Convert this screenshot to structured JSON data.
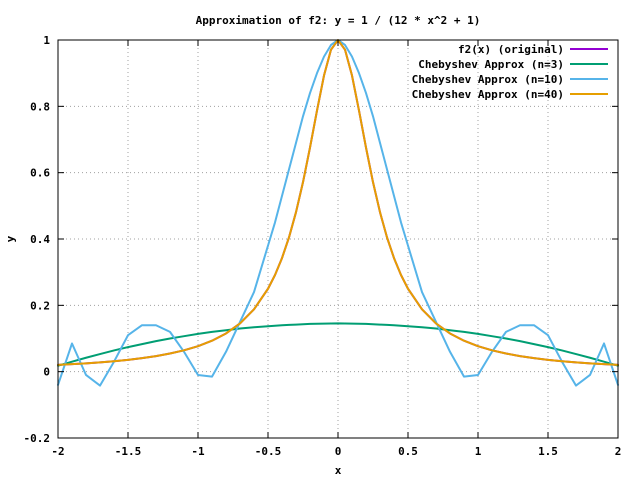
{
  "chart_data": {
    "type": "line",
    "title": "Approximation of f2: y = 1 / (12 * x^2 + 1)",
    "xlabel": "x",
    "ylabel": "y",
    "xlim": [
      -2,
      2
    ],
    "ylim": [
      -0.2,
      1
    ],
    "x_ticks": [
      -2,
      -1.5,
      -1,
      -0.5,
      0,
      0.5,
      1,
      1.5,
      2
    ],
    "x_tick_labels": [
      "-2",
      "-1.5",
      "-1",
      "-0.5",
      "0",
      "0.5",
      "1",
      "1.5",
      "2"
    ],
    "y_ticks": [
      -0.2,
      0,
      0.2,
      0.4,
      0.6,
      0.8,
      1
    ],
    "y_tick_labels": [
      "-0.2",
      "0",
      "0.2",
      "0.4",
      "0.6",
      "0.8",
      "1"
    ],
    "grid": true,
    "legend_position": "top-right",
    "x": [
      -2,
      -1.9,
      -1.8,
      -1.7,
      -1.6,
      -1.5,
      -1.4,
      -1.3,
      -1.2,
      -1.1,
      -1,
      -0.9,
      -0.8,
      -0.7,
      -0.6,
      -0.5,
      -0.45,
      -0.4,
      -0.35,
      -0.3,
      -0.25,
      -0.2,
      -0.15,
      -0.1,
      -0.05,
      0,
      0.05,
      0.1,
      0.15,
      0.2,
      0.25,
      0.3,
      0.35,
      0.4,
      0.45,
      0.5,
      0.6,
      0.7,
      0.8,
      0.9,
      1,
      1.1,
      1.2,
      1.3,
      1.4,
      1.5,
      1.6,
      1.7,
      1.8,
      1.9,
      2
    ],
    "series": [
      {
        "name": "f2(x) (original)",
        "color": "#9400d3",
        "values": [
          0.0204,
          0.0226,
          0.0251,
          0.028,
          0.0315,
          0.0357,
          0.0408,
          0.047,
          0.0547,
          0.0644,
          0.0769,
          0.0933,
          0.1152,
          0.1453,
          0.188,
          0.25,
          0.2915,
          0.3425,
          0.4049,
          0.4808,
          0.5714,
          0.6757,
          0.7874,
          0.8929,
          0.9709,
          1.0,
          0.9709,
          0.8929,
          0.7874,
          0.6757,
          0.5714,
          0.4808,
          0.4049,
          0.3425,
          0.2915,
          0.25,
          0.188,
          0.1453,
          0.1152,
          0.0933,
          0.0769,
          0.0644,
          0.0547,
          0.047,
          0.0408,
          0.0357,
          0.0315,
          0.028,
          0.0251,
          0.0226,
          0.0204
        ]
      },
      {
        "name": "Chebyshev Approx (n=3)",
        "color": "#009e73",
        "values": [
          0.018,
          0.03,
          0.042,
          0.053,
          0.064,
          0.074,
          0.083,
          0.092,
          0.1,
          0.107,
          0.114,
          0.12,
          0.125,
          0.13,
          0.134,
          0.137,
          0.1385,
          0.14,
          0.141,
          0.142,
          0.143,
          0.144,
          0.1445,
          0.145,
          0.1452,
          0.1455,
          0.1452,
          0.145,
          0.1445,
          0.144,
          0.143,
          0.142,
          0.141,
          0.14,
          0.1385,
          0.137,
          0.134,
          0.13,
          0.125,
          0.12,
          0.114,
          0.107,
          0.1,
          0.092,
          0.083,
          0.074,
          0.064,
          0.053,
          0.042,
          0.03,
          0.018
        ]
      },
      {
        "name": "Chebyshev Approx (n=10)",
        "color": "#56b4e9",
        "values": [
          -0.04,
          0.085,
          -0.01,
          -0.042,
          0.03,
          0.11,
          0.14,
          0.14,
          0.12,
          0.06,
          -0.01,
          -0.015,
          0.06,
          0.15,
          0.24,
          0.38,
          0.45,
          0.53,
          0.61,
          0.69,
          0.77,
          0.84,
          0.9,
          0.95,
          0.985,
          1.0,
          0.985,
          0.95,
          0.9,
          0.84,
          0.77,
          0.69,
          0.61,
          0.53,
          0.45,
          0.38,
          0.24,
          0.15,
          0.06,
          -0.015,
          -0.01,
          0.06,
          0.12,
          0.14,
          0.14,
          0.11,
          0.03,
          -0.042,
          -0.01,
          0.085,
          -0.04
        ]
      },
      {
        "name": "Chebyshev Approx (n=40)",
        "color": "#e69f00",
        "values": [
          0.0204,
          0.0226,
          0.0251,
          0.028,
          0.0315,
          0.0357,
          0.0408,
          0.047,
          0.0547,
          0.0644,
          0.0769,
          0.0933,
          0.1152,
          0.1453,
          0.188,
          0.25,
          0.2915,
          0.3425,
          0.4049,
          0.4808,
          0.5714,
          0.6757,
          0.7874,
          0.8929,
          0.9709,
          1.0,
          0.9709,
          0.8929,
          0.7874,
          0.6757,
          0.5714,
          0.4808,
          0.4049,
          0.3425,
          0.2915,
          0.25,
          0.188,
          0.1453,
          0.1152,
          0.0933,
          0.0769,
          0.0644,
          0.0547,
          0.047,
          0.0408,
          0.0357,
          0.0315,
          0.028,
          0.0251,
          0.0226,
          0.0204
        ]
      }
    ]
  }
}
